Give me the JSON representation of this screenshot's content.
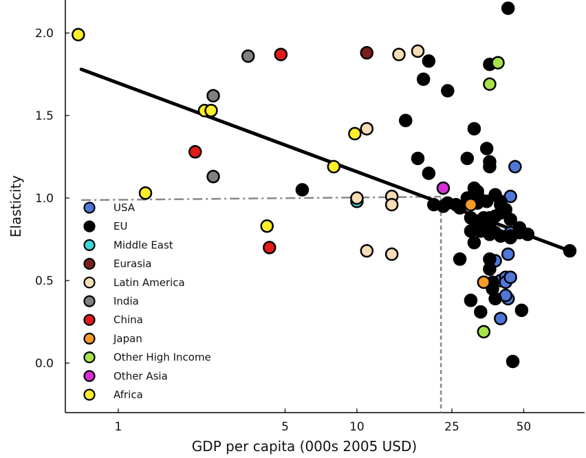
{
  "chart_data": {
    "type": "scatter",
    "title": "",
    "xlabel": "GDP per capita (000s 2005 USD)",
    "ylabel": "Elasticity",
    "x_scale": "log",
    "xlim": [
      0.6,
      90
    ],
    "ylim": [
      -0.3,
      2.2
    ],
    "x_ticks": [
      1,
      5,
      10,
      25,
      50
    ],
    "x_tick_labels": [
      "1",
      "5",
      "10",
      "25",
      "50"
    ],
    "y_ticks": [
      0.0,
      0.5,
      1.0,
      1.5,
      2.0
    ],
    "y_tick_labels": [
      "0.0",
      "0.5",
      "1.0",
      "1.5",
      "2.0"
    ],
    "legend_position": "lower-left",
    "fit_line": {
      "x": [
        0.7,
        78
      ],
      "y": [
        1.78,
        0.68
      ]
    },
    "reference_point": {
      "x": 22.5,
      "y": 1.0
    },
    "series": [
      {
        "name": "USA",
        "color": "#4f77d9",
        "points": [
          [
            46,
            1.19
          ],
          [
            44,
            1.01
          ],
          [
            44,
            0.79
          ],
          [
            44,
            0.76
          ],
          [
            43,
            0.66
          ],
          [
            38,
            0.62
          ],
          [
            40,
            0.5
          ],
          [
            42,
            0.52
          ],
          [
            42,
            0.49
          ],
          [
            43,
            0.39
          ],
          [
            40,
            0.27
          ],
          [
            44,
            0.52
          ],
          [
            42,
            0.41
          ]
        ]
      },
      {
        "name": "EU",
        "color": "#000000",
        "points": [
          [
            43,
            2.15
          ],
          [
            20,
            1.83
          ],
          [
            19,
            1.72
          ],
          [
            24,
            1.65
          ],
          [
            36,
            1.81
          ],
          [
            16,
            1.47
          ],
          [
            31,
            1.42
          ],
          [
            18,
            1.24
          ],
          [
            29,
            1.24
          ],
          [
            20,
            1.15
          ],
          [
            35,
            1.3
          ],
          [
            36,
            1.22
          ],
          [
            36,
            1.19
          ],
          [
            31,
            1.06
          ],
          [
            32,
            1.04
          ],
          [
            29,
            1.0
          ],
          [
            33,
            0.99
          ],
          [
            32,
            0.97
          ],
          [
            35,
            0.98
          ],
          [
            38,
            1.02
          ],
          [
            40,
            0.98
          ],
          [
            40,
            0.96
          ],
          [
            42,
            0.93
          ],
          [
            40,
            0.91
          ],
          [
            38,
            0.89
          ],
          [
            36,
            0.88
          ],
          [
            34,
            0.88
          ],
          [
            30,
            0.88
          ],
          [
            32,
            0.86
          ],
          [
            34,
            0.84
          ],
          [
            36,
            0.82
          ],
          [
            38,
            0.79
          ],
          [
            30,
            0.8
          ],
          [
            33,
            0.8
          ],
          [
            36,
            0.78
          ],
          [
            40,
            0.77
          ],
          [
            44,
            0.77
          ],
          [
            48,
            0.79
          ],
          [
            31,
            0.73
          ],
          [
            36,
            0.63
          ],
          [
            36,
            0.57
          ],
          [
            27,
            0.63
          ],
          [
            37,
            0.49
          ],
          [
            30,
            0.38
          ],
          [
            33,
            0.31
          ],
          [
            38,
            0.39
          ],
          [
            37,
            0.45
          ],
          [
            49,
            0.32
          ],
          [
            45,
            0.01
          ],
          [
            44,
            0.87
          ],
          [
            23,
            0.95
          ],
          [
            26,
            0.96
          ],
          [
            27,
            0.94
          ],
          [
            48,
            0.82
          ],
          [
            52,
            0.78
          ],
          [
            78,
            0.68
          ],
          [
            5.9,
            1.05
          ],
          [
            21,
            0.96
          ],
          [
            24,
            0.97
          ]
        ]
      },
      {
        "name": "Middle East",
        "color": "#3fd6d6",
        "points": [
          [
            10,
            0.98
          ]
        ]
      },
      {
        "name": "Eurasia",
        "color": "#7a1f1f",
        "points": [
          [
            11,
            1.88
          ]
        ]
      },
      {
        "name": "Latin America",
        "color": "#f6ddb7",
        "points": [
          [
            15,
            1.87
          ],
          [
            18,
            1.89
          ],
          [
            11,
            1.42
          ],
          [
            10,
            1.0
          ],
          [
            14,
            1.01
          ],
          [
            14,
            0.96
          ],
          [
            11,
            0.68
          ],
          [
            14,
            0.66
          ]
        ]
      },
      {
        "name": "India",
        "color": "#808080",
        "points": [
          [
            3.5,
            1.86
          ],
          [
            2.5,
            1.62
          ],
          [
            2.5,
            1.13
          ]
        ]
      },
      {
        "name": "China",
        "color": "#e31a1a",
        "points": [
          [
            4.8,
            1.87
          ],
          [
            2.1,
            1.28
          ],
          [
            4.3,
            0.7
          ]
        ]
      },
      {
        "name": "Japan",
        "color": "#f59b2a",
        "points": [
          [
            34,
            0.49
          ],
          [
            30,
            0.96
          ]
        ]
      },
      {
        "name": "Other High Income",
        "color": "#a6e34a",
        "points": [
          [
            39,
            1.82
          ],
          [
            36,
            1.69
          ],
          [
            34,
            0.19
          ]
        ]
      },
      {
        "name": "Other Asia",
        "color": "#d42fd4",
        "points": [
          [
            23,
            1.06
          ]
        ]
      },
      {
        "name": "Africa",
        "color": "#ffef2a",
        "points": [
          [
            0.68,
            1.99
          ],
          [
            2.3,
            1.53
          ],
          [
            2.45,
            1.53
          ],
          [
            1.3,
            1.03
          ],
          [
            4.2,
            0.83
          ],
          [
            8.0,
            1.19
          ],
          [
            9.8,
            1.39
          ]
        ]
      }
    ]
  }
}
